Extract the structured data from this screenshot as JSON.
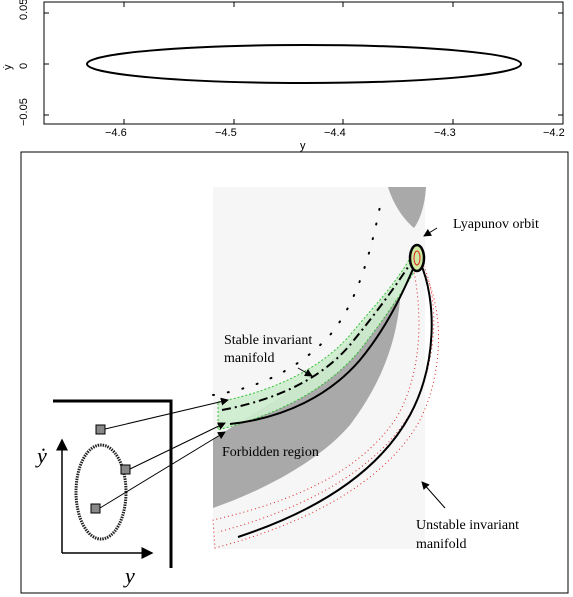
{
  "top_plot": {
    "xlabel": "y",
    "ylabel": "ẏ",
    "x_ticks": [
      "−4.6",
      "−4.5",
      "−4.4",
      "−4.3",
      "−4.2"
    ],
    "y_ticks": [
      "0.05",
      "0",
      "−0.05"
    ]
  },
  "diagram": {
    "lyapunov_label": "Lyapunov orbit",
    "stable_label_line1": "Stable invariant",
    "stable_label_line2": "manifold",
    "forbidden_label": "Forbidden region",
    "unstable_label_line1": "Unstable invariant",
    "unstable_label_line2": "manifold",
    "inset_ylabel": "ẏ",
    "inset_xlabel": "y"
  },
  "colors": {
    "forbidden": "#a9a9a9",
    "stable": "#22bb22",
    "unstable": "#dd2222"
  }
}
